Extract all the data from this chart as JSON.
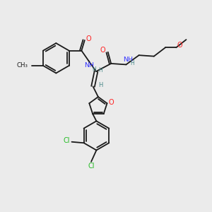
{
  "bg_color": "#ebebeb",
  "bond_color": "#1a1a1a",
  "N_color": "#3333ff",
  "O_color": "#ff2020",
  "Cl_color": "#22bb22",
  "H_color": "#4a8a8a",
  "figsize": [
    3.0,
    3.0
  ],
  "dpi": 100,
  "xlim": [
    0,
    10
  ],
  "ylim": [
    0,
    10
  ]
}
